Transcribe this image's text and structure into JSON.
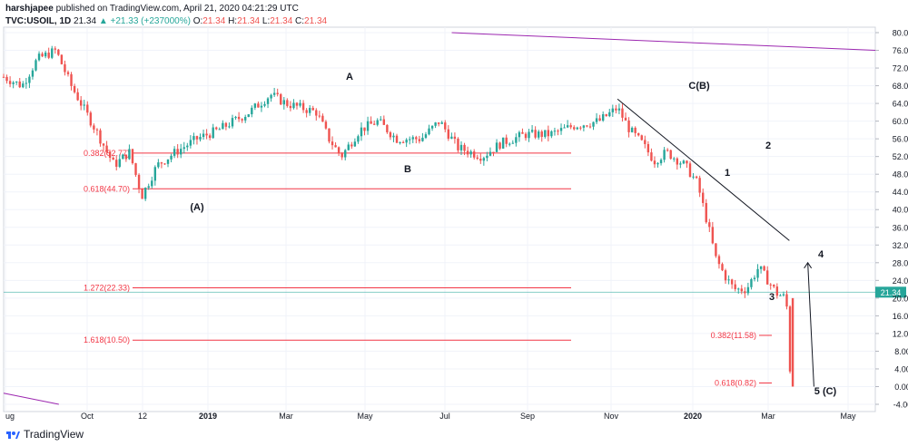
{
  "header": {
    "user": "harshjapee",
    "published_text": "published on TradingView.com, April 21, 2020 04:21:29 UTC",
    "symbol_line": "TVC:USOIL, 1D",
    "last": "21.34",
    "change": "+21.33 (+237000%)",
    "o_label": "O:",
    "o_value": "21.34",
    "h_label": "H:",
    "h_value": "21.34",
    "l_label": "L:",
    "l_value": "21.34",
    "c_label": "C:",
    "c_value": "21.34"
  },
  "footer": {
    "brand": "TradingView"
  },
  "chart_data": {
    "type": "candlestick",
    "symbol": "TVC:USOIL",
    "interval": "1D",
    "y_axis": {
      "min": -4,
      "max": 80,
      "ticks": [
        "80.00",
        "76.00",
        "72.00",
        "68.00",
        "64.00",
        "60.00",
        "56.00",
        "52.00",
        "48.00",
        "44.00",
        "40.00",
        "36.00",
        "32.00",
        "28.00",
        "24.00",
        "20.00",
        "16.00",
        "12.00",
        "8.00",
        "4.00",
        "0.00",
        "-4.00"
      ],
      "tick_values": [
        80,
        76,
        72,
        68,
        64,
        60,
        56,
        52,
        48,
        44,
        40,
        36,
        32,
        28,
        24,
        20,
        16,
        12,
        8,
        4,
        0,
        -4
      ],
      "position": "right"
    },
    "x_axis": {
      "labels": [
        "ug",
        "Oct",
        "12",
        "2019",
        "Mar",
        "May",
        "Jul",
        "Sep",
        "Nov",
        "2020",
        "Mar",
        "May"
      ],
      "bold_labels": [
        "2019",
        "2020"
      ]
    },
    "last_price": {
      "value": 21.34,
      "label": "21.34",
      "color": "#26a69a"
    },
    "series_path": [
      [
        0,
        70
      ],
      [
        0.06,
        68
      ],
      [
        0.11,
        74
      ],
      [
        0.17,
        76
      ],
      [
        0.22,
        68
      ],
      [
        0.3,
        58
      ],
      [
        0.36,
        50
      ],
      [
        0.41,
        53
      ],
      [
        0.45,
        43
      ],
      [
        0.5,
        50
      ],
      [
        0.56,
        53
      ],
      [
        0.63,
        56
      ],
      [
        0.7,
        58
      ],
      [
        0.8,
        62
      ],
      [
        0.87,
        66
      ],
      [
        0.92,
        64
      ],
      [
        1.02,
        62
      ],
      [
        1.06,
        56
      ],
      [
        1.1,
        52
      ],
      [
        1.16,
        58
      ],
      [
        1.22,
        60
      ],
      [
        1.28,
        56
      ],
      [
        1.36,
        56
      ],
      [
        1.42,
        60
      ],
      [
        1.48,
        54
      ],
      [
        1.56,
        52
      ],
      [
        1.62,
        55
      ],
      [
        1.7,
        57
      ],
      [
        1.78,
        57
      ],
      [
        1.86,
        59
      ],
      [
        1.94,
        60
      ],
      [
        2.0,
        63
      ],
      [
        2.04,
        58
      ],
      [
        2.08,
        55
      ],
      [
        2.12,
        51
      ],
      [
        2.16,
        53
      ],
      [
        2.22,
        50
      ],
      [
        2.26,
        46
      ],
      [
        2.3,
        35
      ],
      [
        2.32,
        29
      ],
      [
        2.35,
        25
      ],
      [
        2.38,
        22
      ],
      [
        2.42,
        22
      ],
      [
        2.46,
        27
      ],
      [
        2.48,
        25
      ],
      [
        2.52,
        21
      ],
      [
        2.55,
        20
      ],
      [
        2.565,
        0
      ]
    ],
    "fib_levels": [
      {
        "label": "0.382(52.77)",
        "value": 52.77
      },
      {
        "label": "0.618(44.70)",
        "value": 44.7
      },
      {
        "label": "1.272(22.33)",
        "value": 22.33
      },
      {
        "label": "1.618(10.50)",
        "value": 10.5
      },
      {
        "label": "0.382(11.58)",
        "value": 11.58
      },
      {
        "label": "0.618(0.82)",
        "value": 0.82
      }
    ],
    "wave_labels": [
      "(A)",
      "A",
      "B",
      "C(B)",
      "1",
      "2",
      "3",
      "4",
      "5 (C)"
    ],
    "trendlines": [
      {
        "name": "resistance-trendline",
        "from": [
          2.0,
          65
        ],
        "to": [
          2.56,
          33
        ]
      },
      {
        "name": "projection-arrow",
        "from": [
          2.64,
          0
        ],
        "to": [
          2.62,
          28
        ]
      },
      {
        "name": "upper-channel-line",
        "from": [
          1.46,
          80
        ],
        "to": [
          2.84,
          76
        ]
      },
      {
        "name": "lower-channel-line",
        "from": [
          0,
          -1.5
        ],
        "to": [
          0.18,
          -4
        ]
      }
    ],
    "colors": {
      "up": "#26a69a",
      "down": "#ef5350",
      "fib": "#f23645",
      "trend": "#131722",
      "channel": "#9c27b0",
      "price_line": "#26a69a"
    },
    "grid": true
  }
}
